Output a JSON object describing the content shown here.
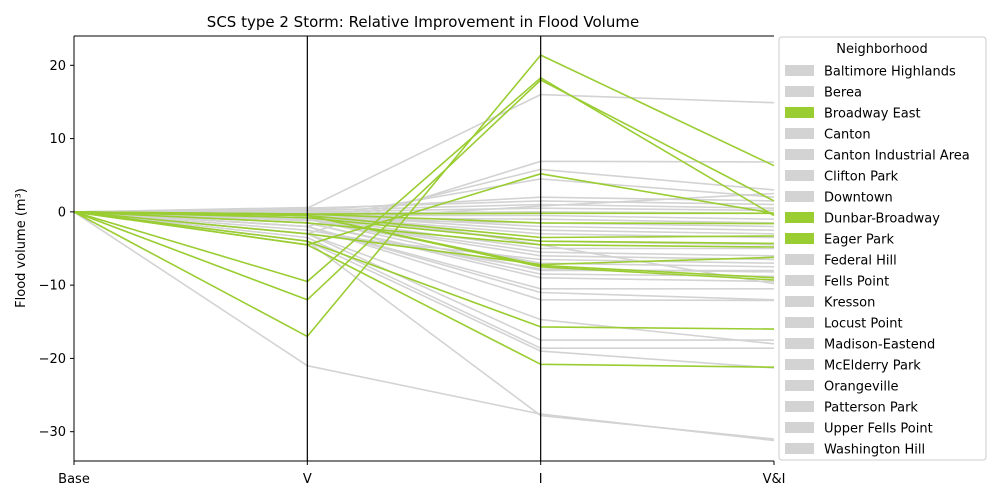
{
  "chart_data": {
    "type": "line",
    "title": "SCS type 2 Storm: Relative Improvement in Flood Volume",
    "ylabel": "Flood volume (m³)",
    "xlabel": "",
    "categories": [
      "Base",
      "V",
      "I",
      "V&I"
    ],
    "ylim": [
      -34,
      24
    ],
    "yticks": [
      20,
      10,
      0,
      -10,
      -20,
      -30
    ],
    "ytick_labels": [
      "20",
      "10",
      "0",
      "−10",
      "−20",
      "−30"
    ],
    "grid": false,
    "legend": {
      "title": "Neighborhood",
      "placement": "outside-right",
      "entries": [
        {
          "label": "Baltimore Highlands",
          "color": "#d3d3d3"
        },
        {
          "label": "Berea",
          "color": "#d3d3d3"
        },
        {
          "label": "Broadway East",
          "color": "#9acd32"
        },
        {
          "label": "Canton",
          "color": "#d3d3d3"
        },
        {
          "label": "Canton Industrial Area",
          "color": "#d3d3d3"
        },
        {
          "label": "Clifton Park",
          "color": "#d3d3d3"
        },
        {
          "label": "Downtown",
          "color": "#d3d3d3"
        },
        {
          "label": "Dunbar-Broadway",
          "color": "#9acd32"
        },
        {
          "label": "Eager Park",
          "color": "#9acd32"
        },
        {
          "label": "Federal Hill",
          "color": "#d3d3d3"
        },
        {
          "label": "Fells Point",
          "color": "#d3d3d3"
        },
        {
          "label": "Kresson",
          "color": "#d3d3d3"
        },
        {
          "label": "Locust Point",
          "color": "#d3d3d3"
        },
        {
          "label": "Madison-Eastend",
          "color": "#d3d3d3"
        },
        {
          "label": "McElderry Park",
          "color": "#d3d3d3"
        },
        {
          "label": "Orangeville",
          "color": "#d3d3d3"
        },
        {
          "label": "Patterson Park",
          "color": "#d3d3d3"
        },
        {
          "label": "Upper Fells Point",
          "color": "#d3d3d3"
        },
        {
          "label": "Washington Hill",
          "color": "#d3d3d3"
        }
      ]
    },
    "colors": {
      "highlight": "#9acd32",
      "other": "#d3d3d3"
    },
    "series_gray": [
      [
        0,
        -21,
        -27.6,
        -31.2
      ],
      [
        0,
        -4,
        -27.8,
        -31.0
      ],
      [
        0,
        0.5,
        16.0,
        14.9
      ],
      [
        0,
        -3,
        6.9,
        6.8
      ],
      [
        0,
        -2,
        5.8,
        3.0
      ],
      [
        0,
        -1,
        4.5,
        2.0
      ],
      [
        0,
        -4,
        -19.0,
        -21.3
      ],
      [
        0,
        -3.5,
        -18.6,
        -18.6
      ],
      [
        0,
        -3,
        -14.7,
        -18.0
      ],
      [
        0,
        -3,
        -17.5,
        -17.5
      ],
      [
        0,
        -2,
        -12.0,
        -12.1
      ],
      [
        0,
        -2,
        -11.0,
        -12.0
      ],
      [
        0,
        -2,
        -10.5,
        -10.5
      ],
      [
        0,
        -1.5,
        -9.0,
        -9.5
      ],
      [
        0,
        -1.5,
        -8.5,
        -8.8
      ],
      [
        0,
        -1,
        -8.0,
        -8.0
      ],
      [
        0,
        -1,
        -7.0,
        -7.5
      ],
      [
        0,
        -1,
        -6.0,
        -6.5
      ],
      [
        0,
        -1,
        -5.5,
        -6.0
      ],
      [
        0,
        -0.8,
        -5.0,
        -5.0
      ],
      [
        0,
        -0.5,
        -4.0,
        -4.5
      ],
      [
        0,
        -0.5,
        -3.0,
        -3.5
      ],
      [
        0,
        -0.3,
        -2.5,
        -3.0
      ],
      [
        0,
        -0.3,
        -2.0,
        -2.5
      ],
      [
        0,
        0.3,
        2.0,
        1.5
      ],
      [
        0,
        0.5,
        1.5,
        1.0
      ],
      [
        0,
        0.2,
        1.0,
        0.5
      ],
      [
        0,
        0.0,
        0.5,
        0.2
      ],
      [
        0,
        -0.2,
        0.0,
        -0.2
      ],
      [
        0,
        -0.5,
        -0.5,
        -1.0
      ],
      [
        0,
        -0.8,
        -1.0,
        -1.5
      ],
      [
        0,
        -1.0,
        -1.5,
        -2.0
      ],
      [
        0,
        -1.2,
        0.8,
        2.5
      ],
      [
        0,
        0.6,
        -4.5,
        -9.8
      ],
      [
        0,
        -3.0,
        -6.5,
        -7.0
      ],
      [
        0,
        -2.5,
        -7.8,
        -8.2
      ]
    ],
    "series_green": [
      [
        0,
        -17.0,
        21.4,
        6.3
      ],
      [
        0,
        -12.0,
        18.0,
        1.5
      ],
      [
        0,
        -9.5,
        18.3,
        -0.5
      ],
      [
        0,
        -4.5,
        5.2,
        -0.2
      ],
      [
        0,
        -4.0,
        -15.7,
        -16.0
      ],
      [
        0,
        -4.5,
        -20.8,
        -21.2
      ],
      [
        0,
        -0.5,
        -7.5,
        -9.3
      ],
      [
        0,
        -0.5,
        -7.3,
        -9.0
      ],
      [
        0,
        -1.5,
        -4.5,
        -4.8
      ],
      [
        0,
        -0.8,
        -4.0,
        -4.3
      ],
      [
        0,
        -0.5,
        -3.5,
        -3.3
      ],
      [
        0,
        -0.3,
        -1.5,
        -1.6
      ],
      [
        0,
        -0.3,
        -0.2,
        -0.2
      ],
      [
        0,
        -3.0,
        -7.2,
        -6.2
      ]
    ]
  }
}
